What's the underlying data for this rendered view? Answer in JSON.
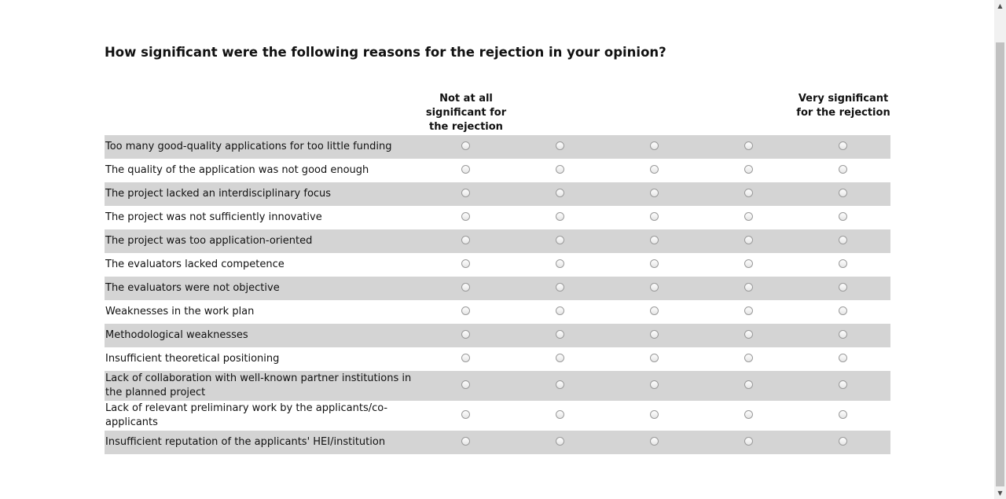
{
  "question": "How significant were the following reasons for the rejection in your opinion?",
  "scale": {
    "low_label": "Not at all significant for the rejection",
    "high_label": "Very significant for the rejection",
    "options_count": 5
  },
  "items": [
    {
      "label": "Too many good-quality applications for too little funding"
    },
    {
      "label": "The quality of the application was not good enough"
    },
    {
      "label": "The project lacked an interdisciplinary focus"
    },
    {
      "label": "The project was not sufficiently innovative"
    },
    {
      "label": "The project was too application-oriented"
    },
    {
      "label": "The evaluators lacked competence"
    },
    {
      "label": "The evaluators were not objective"
    },
    {
      "label": "Weaknesses in the work plan"
    },
    {
      "label": "Methodological weaknesses"
    },
    {
      "label": "Insufficient theoretical positioning"
    },
    {
      "label": "Lack of collaboration with well-known partner institutions in the planned project"
    },
    {
      "label": "Lack of relevant preliminary work by the applicants/co-applicants"
    },
    {
      "label": "Insufficient reputation of the applicants' HEI/institution"
    }
  ],
  "scrollbar": {
    "up_icon": "triangle-up-icon",
    "down_icon": "triangle-down-icon"
  }
}
